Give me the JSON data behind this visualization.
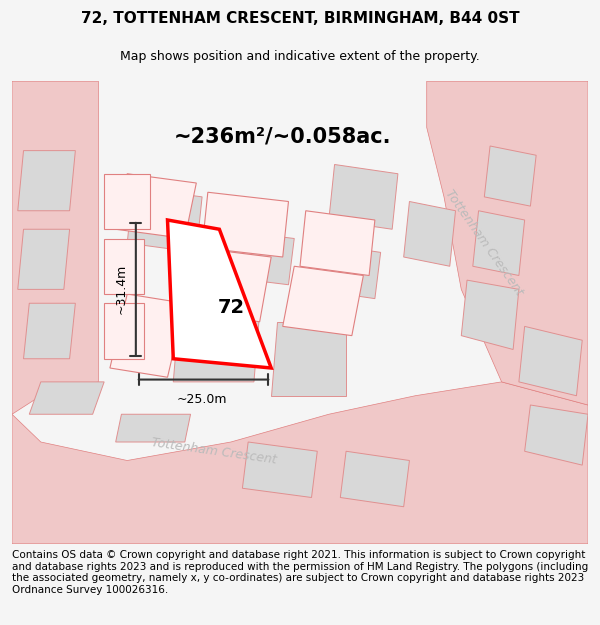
{
  "title": "72, TOTTENHAM CRESCENT, BIRMINGHAM, B44 0ST",
  "subtitle": "Map shows position and indicative extent of the property.",
  "area_text": "~236m²/~0.058ac.",
  "width_label": "~25.0m",
  "height_label": "~31.4m",
  "plot_number": "72",
  "footer": "Contains OS data © Crown copyright and database right 2021. This information is subject to Crown copyright and database rights 2023 and is reproduced with the permission of HM Land Registry. The polygons (including the associated geometry, namely x, y co-ordinates) are subject to Crown copyright and database rights 2023 Ordnance Survey 100026316.",
  "bg_color": "#f5f5f5",
  "map_bg": "#ffffff",
  "road_color": "#f0c8c8",
  "road_stroke": "#e08080",
  "building_color": "#d8d8d8",
  "building_stroke": "#e09090",
  "highlight_color": "#ff0000",
  "dimension_color": "#333333",
  "street_label_color": "#aaaaaa",
  "title_fontsize": 11,
  "subtitle_fontsize": 9,
  "area_fontsize": 16,
  "footer_fontsize": 7.5
}
